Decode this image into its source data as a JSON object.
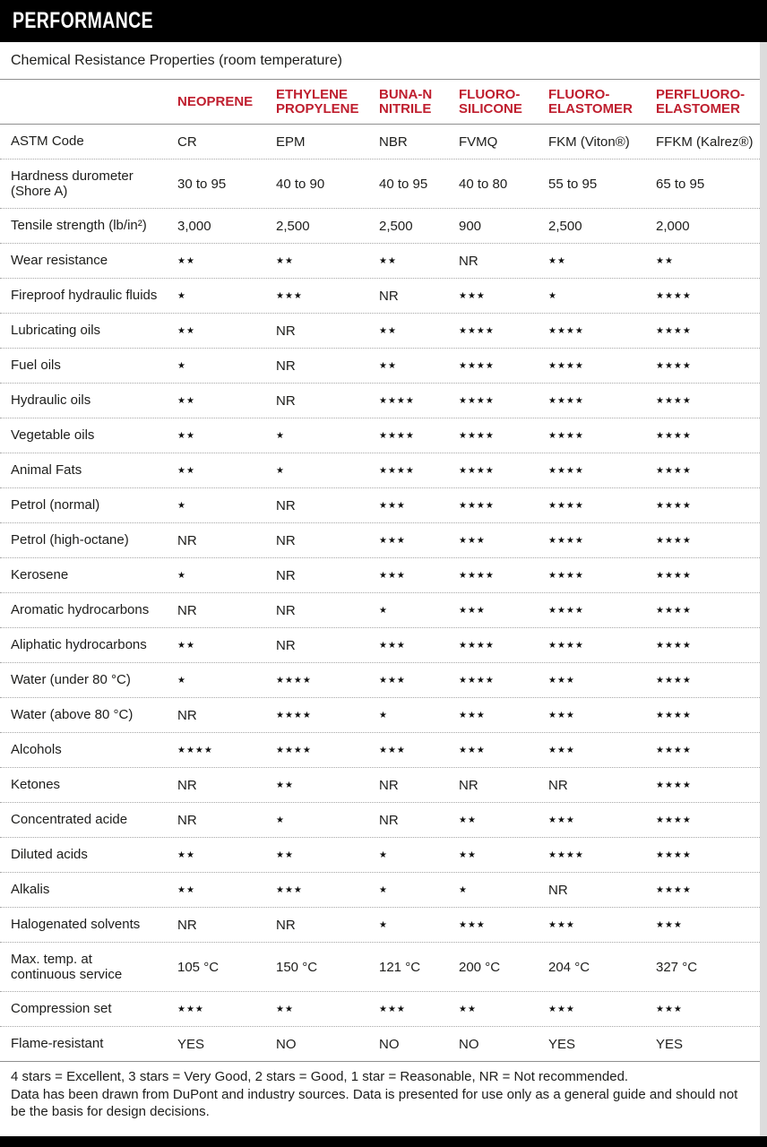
{
  "header": {
    "title": "PERFORMANCE"
  },
  "subtitle": "Chemical Resistance Properties (room temperature)",
  "colors": {
    "accent_red": "#bf1e2e",
    "bar_black": "#000000"
  },
  "table": {
    "columns": [
      {
        "lines": [
          "NEOPRENE"
        ]
      },
      {
        "lines": [
          "ETHYLENE",
          "PROPYLENE"
        ]
      },
      {
        "lines": [
          "BUNA-N",
          "NITRILE"
        ]
      },
      {
        "lines": [
          "FLUORO-",
          "SILICONE"
        ]
      },
      {
        "lines": [
          "FLUORO-",
          "ELASTOMER"
        ]
      },
      {
        "lines": [
          "PERFLUORO-",
          "ELASTOMER"
        ]
      }
    ],
    "rows": [
      {
        "label": "ASTM Code",
        "values": [
          "CR",
          "EPM",
          "NBR",
          "FVMQ",
          "FKM (Viton®)",
          "FFKM (Kalrez®)"
        ]
      },
      {
        "label": "Hardness durometer\n(Shore A)",
        "values": [
          "30 to 95",
          "40 to 90",
          "40 to 95",
          "40 to 80",
          "55 to 95",
          "65 to 95"
        ]
      },
      {
        "label": "Tensile strength (lb/in²)",
        "values": [
          "3,000",
          "2,500",
          "2,500",
          "900",
          "2,500",
          "2,000"
        ]
      },
      {
        "label": "Wear resistance",
        "values": [
          "★★",
          "★★",
          "★★",
          "NR",
          "★★",
          "★★"
        ]
      },
      {
        "label": "Fireproof hydraulic fluids",
        "values": [
          "★",
          "★★★",
          "NR",
          "★★★",
          "★",
          "★★★★"
        ]
      },
      {
        "label": "Lubricating oils",
        "values": [
          "★★",
          "NR",
          "★★",
          "★★★★",
          "★★★★",
          "★★★★"
        ]
      },
      {
        "label": "Fuel oils",
        "values": [
          "★",
          "NR",
          "★★",
          "★★★★",
          "★★★★",
          "★★★★"
        ]
      },
      {
        "label": "Hydraulic oils",
        "values": [
          "★★",
          "NR",
          "★★★★",
          "★★★★",
          "★★★★",
          "★★★★"
        ]
      },
      {
        "label": "Vegetable oils",
        "values": [
          "★★",
          "★",
          "★★★★",
          "★★★★",
          "★★★★",
          "★★★★"
        ]
      },
      {
        "label": "Animal Fats",
        "values": [
          "★★",
          "★",
          "★★★★",
          "★★★★",
          "★★★★",
          "★★★★"
        ]
      },
      {
        "label": "Petrol (normal)",
        "values": [
          "★",
          "NR",
          "★★★",
          "★★★★",
          "★★★★",
          "★★★★"
        ]
      },
      {
        "label": "Petrol (high-octane)",
        "values": [
          "NR",
          "NR",
          "★★★",
          "★★★",
          "★★★★",
          "★★★★"
        ]
      },
      {
        "label": "Kerosene",
        "values": [
          "★",
          "NR",
          "★★★",
          "★★★★",
          "★★★★",
          "★★★★"
        ]
      },
      {
        "label": "Aromatic hydrocarbons",
        "values": [
          "NR",
          "NR",
          "★",
          "★★★",
          "★★★★",
          "★★★★"
        ]
      },
      {
        "label": "Aliphatic hydrocarbons",
        "values": [
          "★★",
          "NR",
          "★★★",
          "★★★★",
          "★★★★",
          "★★★★"
        ]
      },
      {
        "label": "Water (under 80 °C)",
        "values": [
          "★",
          "★★★★",
          "★★★",
          "★★★★",
          "★★★",
          "★★★★"
        ]
      },
      {
        "label": "Water (above 80 °C)",
        "values": [
          "NR",
          "★★★★",
          "★",
          "★★★",
          "★★★",
          "★★★★"
        ]
      },
      {
        "label": "Alcohols",
        "values": [
          "★★★★",
          "★★★★",
          "★★★",
          "★★★",
          "★★★",
          "★★★★"
        ]
      },
      {
        "label": "Ketones",
        "values": [
          "NR",
          "★★",
          "NR",
          "NR",
          "NR",
          "★★★★"
        ]
      },
      {
        "label": "Concentrated acide",
        "values": [
          "NR",
          "★",
          "NR",
          "★★",
          "★★★",
          "★★★★"
        ]
      },
      {
        "label": "Diluted acids",
        "values": [
          "★★",
          "★★",
          "★",
          "★★",
          "★★★★",
          "★★★★"
        ]
      },
      {
        "label": "Alkalis",
        "values": [
          "★★",
          "★★★",
          "★",
          "★",
          "NR",
          "★★★★"
        ]
      },
      {
        "label": "Halogenated solvents",
        "values": [
          "NR",
          "NR",
          "★",
          "★★★",
          "★★★",
          "★★★"
        ]
      },
      {
        "label": "Max. temp. at\ncontinuous service",
        "values": [
          "105 °C",
          "150 °C",
          "121 °C",
          "200 °C",
          "204 °C",
          "327 °C"
        ]
      },
      {
        "label": "Compression set",
        "values": [
          "★★★",
          "★★",
          "★★★",
          "★★",
          "★★★",
          "★★★"
        ]
      },
      {
        "label": "Flame-resistant",
        "values": [
          "YES",
          "NO",
          "NO",
          "NO",
          "YES",
          "YES"
        ]
      }
    ]
  },
  "footer": {
    "legend": "4 stars = Excellent, 3 stars = Very Good, 2 stars = Good, 1 star = Reasonable, NR = Not recommended.",
    "disclaimer": "Data has been drawn from DuPont and industry sources. Data is presented for use only as a general guide and should not be the basis for design decisions."
  }
}
